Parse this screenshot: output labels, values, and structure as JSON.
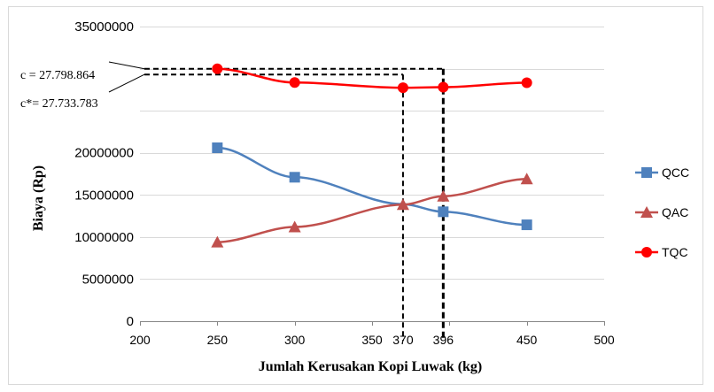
{
  "chart_data": {
    "type": "line",
    "title": "",
    "xlabel": "Jumlah Kerusakan Kopi Luwak (kg)",
    "ylabel": "Biaya (Rp)",
    "xlim": [
      200,
      500
    ],
    "ylim": [
      0,
      35000000
    ],
    "x_ticks": [
      200,
      250,
      300,
      350,
      400,
      450,
      500
    ],
    "x_tick_labels": [
      "200",
      "250",
      "300",
      "350",
      "",
      "450",
      "500"
    ],
    "extra_x_labels": [
      "370",
      "396"
    ],
    "y_ticks": [
      0,
      5000000,
      10000000,
      15000000,
      20000000,
      25000000,
      30000000,
      35000000
    ],
    "y_tick_labels": [
      "0",
      "5000000",
      "10000000",
      "15000000",
      "20000000",
      "",
      "",
      "35000000"
    ],
    "grid": "horizontal",
    "legend_position": "right",
    "x": [
      250,
      300,
      370,
      396,
      450
    ],
    "series": [
      {
        "name": "QCC",
        "color": "#4f81bd",
        "marker": "square",
        "values": [
          20600000,
          17100000,
          13900000,
          13000000,
          11450000
        ]
      },
      {
        "name": "QAC",
        "color": "#c0504d",
        "marker": "triangle",
        "values": [
          9400000,
          11200000,
          13850000,
          14850000,
          16900000
        ]
      },
      {
        "name": "TQC",
        "color": "#ff0000",
        "marker": "circle",
        "values": [
          29980000,
          28350000,
          27733783,
          27798864,
          28330000
        ]
      }
    ],
    "annotations": [
      {
        "label": "c = 27.798.864",
        "x": 396,
        "y": 29980000
      },
      {
        "label": "c*= 27.733.783",
        "x": 370,
        "y": 29300000
      }
    ]
  }
}
